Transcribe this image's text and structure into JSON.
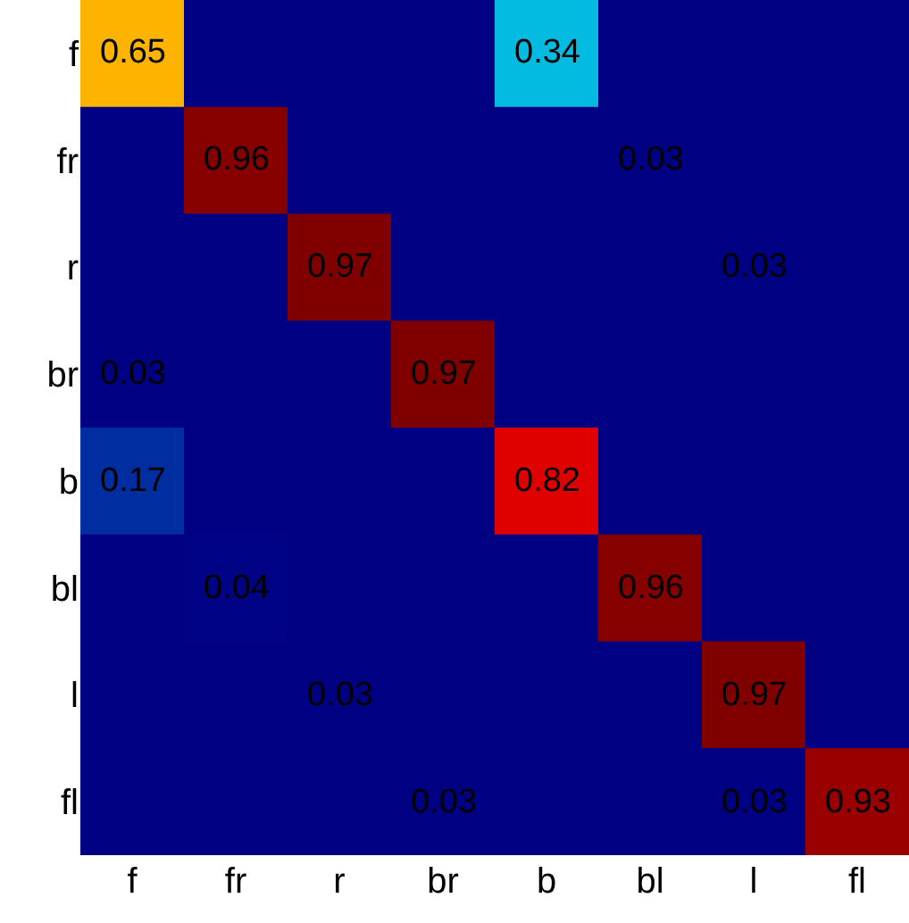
{
  "chart_data": {
    "type": "heatmap",
    "data_labels": true,
    "categories": [
      "f",
      "fr",
      "r",
      "br",
      "b",
      "bl",
      "l",
      "fl"
    ],
    "y_categories": [
      "f",
      "fr",
      "r",
      "br",
      "b",
      "bl",
      "l",
      "fl"
    ],
    "cells": [
      [
        0.65,
        null,
        null,
        null,
        0.34,
        null,
        null,
        null
      ],
      [
        null,
        0.96,
        null,
        null,
        null,
        0.03,
        null,
        null
      ],
      [
        null,
        null,
        0.97,
        null,
        null,
        null,
        0.03,
        null
      ],
      [
        0.03,
        null,
        null,
        0.97,
        null,
        null,
        null,
        null
      ],
      [
        0.17,
        null,
        null,
        null,
        0.82,
        null,
        null,
        null
      ],
      [
        null,
        0.04,
        null,
        null,
        null,
        0.96,
        null,
        null
      ],
      [
        null,
        null,
        0.03,
        null,
        null,
        null,
        0.97,
        null
      ],
      [
        null,
        null,
        null,
        0.03,
        null,
        null,
        0.03,
        0.93
      ]
    ]
  }
}
